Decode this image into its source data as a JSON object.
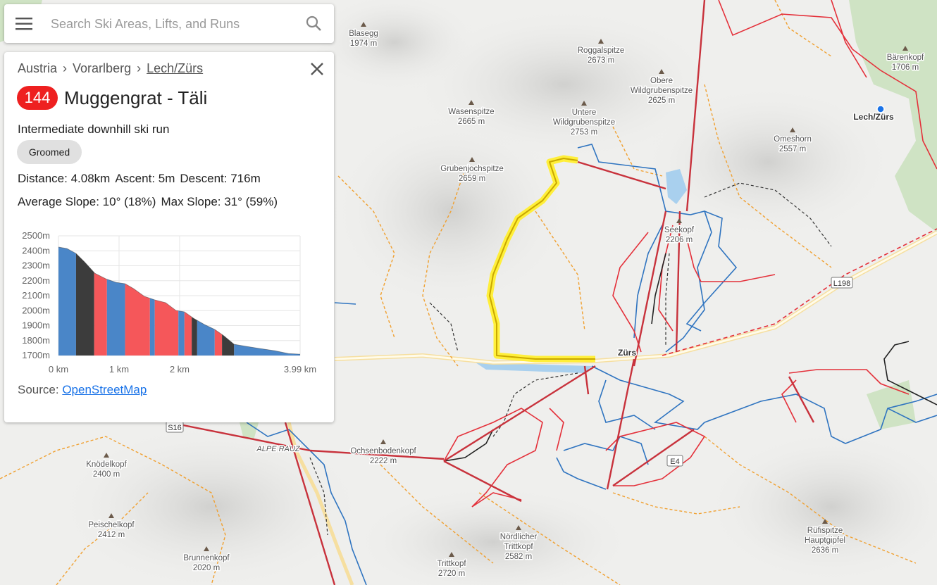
{
  "search": {
    "placeholder": "Search Ski Areas, Lifts, and Runs"
  },
  "panel": {
    "breadcrumb": [
      "Austria",
      "Vorarlberg",
      "Lech/Zürs"
    ],
    "separator": "›",
    "run_number": "144",
    "title": "Muggengrat - Täli",
    "description": "Intermediate downhill ski run",
    "tag": "Groomed",
    "stats": [
      [
        "Distance: 4.08km",
        "Ascent: 5m",
        "Descent: 716m"
      ],
      [
        "Average Slope: 10° (18%)",
        "Max Slope: 31° (59%)"
      ]
    ],
    "elevation_chart": {
      "type": "area",
      "x": [
        0,
        0.14,
        0.29,
        0.43,
        0.6,
        0.78,
        0.95,
        1.1,
        1.24,
        1.42,
        1.59,
        1.77,
        1.94,
        2.08,
        2.23,
        2.41,
        2.58,
        2.73,
        2.9,
        3.1,
        3.34,
        3.57,
        3.8,
        3.99
      ],
      "values": [
        2425,
        2415,
        2382,
        2326,
        2250,
        2213,
        2189,
        2180,
        2147,
        2095,
        2072,
        2053,
        2001,
        1992,
        1949,
        1907,
        1874,
        1832,
        1775,
        1761,
        1746,
        1732,
        1713,
        1709
      ],
      "xlim": [
        0,
        3.99
      ],
      "ylim": [
        1700,
        2500
      ],
      "xticks": [
        {
          "value": 0,
          "label": "0 km"
        },
        {
          "value": 1,
          "label": "1 km"
        },
        {
          "value": 2,
          "label": "2 km"
        },
        {
          "value": 3.99,
          "label": "3.99 km"
        }
      ],
      "yticks": [
        {
          "value": 2500,
          "label": "2500m"
        },
        {
          "value": 2400,
          "label": "2400m"
        },
        {
          "value": 2300,
          "label": "2300m"
        },
        {
          "value": 2200,
          "label": "2200m"
        },
        {
          "value": 2100,
          "label": "2100m"
        },
        {
          "value": 2000,
          "label": "2000m"
        },
        {
          "value": 1900,
          "label": "1900m"
        },
        {
          "value": 1800,
          "label": "1800m"
        },
        {
          "value": 1700,
          "label": "1700m"
        }
      ],
      "grid": true,
      "segments": [
        {
          "start": 0,
          "end": 0.29,
          "color": "#4a86c8"
        },
        {
          "start": 0.29,
          "end": 0.59,
          "color": "#3c3c3c"
        },
        {
          "start": 0.59,
          "end": 0.8,
          "color": "#f5575a"
        },
        {
          "start": 0.8,
          "end": 1.1,
          "color": "#4a86c8"
        },
        {
          "start": 1.1,
          "end": 1.51,
          "color": "#f5575a"
        },
        {
          "start": 1.51,
          "end": 1.59,
          "color": "#4a86c8"
        },
        {
          "start": 1.59,
          "end": 1.98,
          "color": "#f5575a"
        },
        {
          "start": 1.98,
          "end": 2.08,
          "color": "#4a86c8"
        },
        {
          "start": 2.08,
          "end": 2.2,
          "color": "#f5575a"
        },
        {
          "start": 2.2,
          "end": 2.29,
          "color": "#3c3c3c"
        },
        {
          "start": 2.29,
          "end": 2.58,
          "color": "#4a86c8"
        },
        {
          "start": 2.58,
          "end": 2.7,
          "color": "#f5575a"
        },
        {
          "start": 2.7,
          "end": 2.9,
          "color": "#3c3c3c"
        },
        {
          "start": 2.9,
          "end": 3.99,
          "color": "#4a86c8"
        }
      ]
    },
    "source": {
      "label": "Source:",
      "link": "OpenStreetMap"
    }
  },
  "map": {
    "peaks": [
      {
        "lines": [
          "Blasegg",
          "1974 m"
        ]
      },
      {
        "lines": [
          "Roggalspitze",
          "2673 m"
        ]
      },
      {
        "lines": [
          "Obere",
          "Wildgrubenspitze",
          "2625 m"
        ]
      },
      {
        "lines": [
          "Wasenspitze",
          "2665 m"
        ]
      },
      {
        "lines": [
          "Untere",
          "Wildgrubenspitze",
          "2753 m"
        ]
      },
      {
        "lines": [
          "Grubenjochspitze",
          "2659 m"
        ]
      },
      {
        "lines": [
          "Bärenkopf",
          "1706 m"
        ]
      },
      {
        "lines": [
          "Omeshorn",
          "2557 m"
        ]
      },
      {
        "lines": [
          "Seekopf",
          "2206 m"
        ]
      },
      {
        "lines": [
          "Ochsenbodenkopf",
          "2222 m"
        ]
      },
      {
        "lines": [
          "Knödelkopf",
          "2400 m"
        ]
      },
      {
        "lines": [
          "Peischelkopf",
          "2412 m"
        ]
      },
      {
        "lines": [
          "Brunnenkopf",
          "2020 m"
        ]
      },
      {
        "lines": [
          "Nördlicher",
          "Trittkopf",
          "2582 m"
        ]
      },
      {
        "lines": [
          "Trittkopf",
          "2720 m"
        ]
      },
      {
        "lines": [
          "Rüfispitze",
          "Hauptgipfel",
          "2636 m"
        ]
      }
    ],
    "places": [
      "Lech/Zürs",
      "Zürs",
      "ALPE RAUZ"
    ],
    "roads": [
      "L198",
      "S16",
      "E4"
    ]
  }
}
